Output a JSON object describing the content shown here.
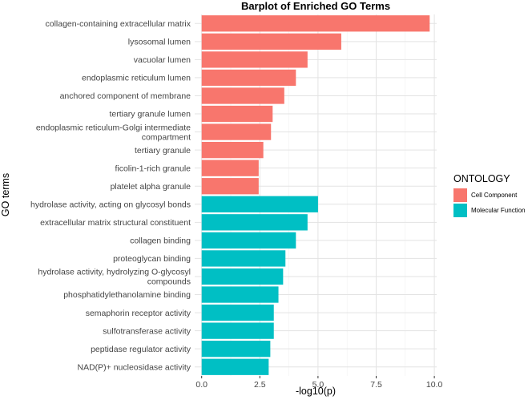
{
  "chart_data": {
    "type": "bar",
    "orientation": "horizontal",
    "title": "Barplot of Enriched GO Terms",
    "xlabel": "-log10(p)",
    "ylabel": "GO terms",
    "xlim": [
      -0.3,
      10.1
    ],
    "xticks": [
      0,
      2.5,
      5,
      7.5,
      10
    ],
    "xtick_labels": [
      "0.0",
      "2.5",
      "5.0",
      "7.5",
      "10.0"
    ],
    "grid": true,
    "legend": {
      "title": "ONTOLOGY",
      "position": "right",
      "entries": [
        {
          "name": "Cell Component",
          "color": "#F8766D"
        },
        {
          "name": "Molecular Function",
          "color": "#00BFC4"
        }
      ]
    },
    "categories": [
      {
        "label": [
          "collagen-containing extracellular matrix"
        ],
        "value": 9.8,
        "group": "Cell Component"
      },
      {
        "label": [
          "lysosomal lumen"
        ],
        "value": 6.0,
        "group": "Cell Component"
      },
      {
        "label": [
          "vacuolar lumen"
        ],
        "value": 4.55,
        "group": "Cell Component"
      },
      {
        "label": [
          "endoplasmic reticulum lumen"
        ],
        "value": 4.05,
        "group": "Cell Component"
      },
      {
        "label": [
          "anchored component of membrane"
        ],
        "value": 3.55,
        "group": "Cell Component"
      },
      {
        "label": [
          "tertiary granule lumen"
        ],
        "value": 3.05,
        "group": "Cell Component"
      },
      {
        "label": [
          "endoplasmic reticulum-Golgi intermediate",
          "compartment"
        ],
        "value": 2.98,
        "group": "Cell Component"
      },
      {
        "label": [
          "tertiary granule"
        ],
        "value": 2.65,
        "group": "Cell Component"
      },
      {
        "label": [
          "ficolin-1-rich granule"
        ],
        "value": 2.45,
        "group": "Cell Component"
      },
      {
        "label": [
          "platelet alpha granule"
        ],
        "value": 2.45,
        "group": "Cell Component"
      },
      {
        "label": [
          "hydrolase activity, acting on glycosyl bonds"
        ],
        "value": 5.0,
        "group": "Molecular Function"
      },
      {
        "label": [
          "extracellular matrix structural constituent"
        ],
        "value": 4.55,
        "group": "Molecular Function"
      },
      {
        "label": [
          "collagen binding"
        ],
        "value": 4.05,
        "group": "Molecular Function"
      },
      {
        "label": [
          "proteoglycan binding"
        ],
        "value": 3.6,
        "group": "Molecular Function"
      },
      {
        "label": [
          "hydrolase activity, hydrolyzing O-glycosyl",
          "compounds"
        ],
        "value": 3.5,
        "group": "Molecular Function"
      },
      {
        "label": [
          "phosphatidylethanolamine binding"
        ],
        "value": 3.3,
        "group": "Molecular Function"
      },
      {
        "label": [
          "semaphorin receptor activity"
        ],
        "value": 3.1,
        "group": "Molecular Function"
      },
      {
        "label": [
          "sulfotransferase activity"
        ],
        "value": 3.1,
        "group": "Molecular Function"
      },
      {
        "label": [
          "peptidase regulator activity"
        ],
        "value": 2.95,
        "group": "Molecular Function"
      },
      {
        "label": [
          "NAD(P)+ nucleosidase activity"
        ],
        "value": 2.88,
        "group": "Molecular Function"
      }
    ]
  }
}
